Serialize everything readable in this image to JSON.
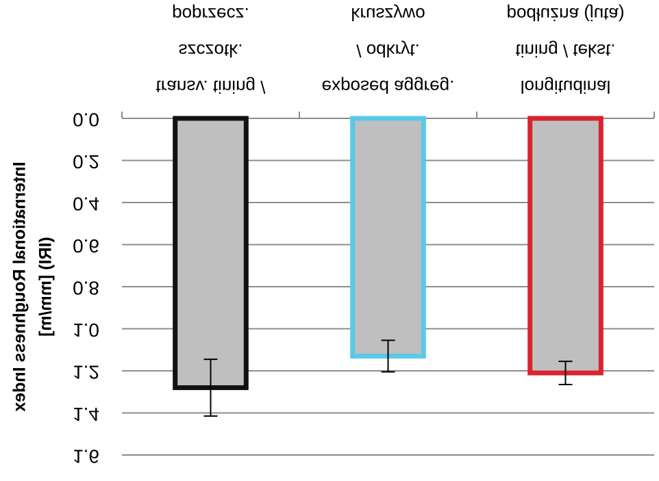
{
  "chart_data": {
    "type": "bar",
    "y_label": [
      "International Roughness Index",
      "(IRI) [mm/m]"
    ],
    "categories": [
      [
        "transv. tining /",
        "szczotk.",
        "poprzecz."
      ],
      [
        "exposed aggreg.",
        "/ odkryt.",
        "kruszywo"
      ],
      [
        "longitudinal",
        "tining / tekst.",
        "podłużna (juta)"
      ]
    ],
    "values": [
      1.28,
      1.13,
      1.21
    ],
    "errors": [
      0.135,
      0.075,
      0.055
    ],
    "fill": "#bfbfbf",
    "colors": [
      "#111111",
      "#5bc8e8",
      "#d9232d"
    ],
    "ylim": [
      0,
      1.6
    ],
    "yticks": [
      {
        "value": 0,
        "label": "0.0"
      },
      {
        "value": 0.2,
        "label": "0.2"
      },
      {
        "value": 0.4,
        "label": "0.4"
      },
      {
        "value": 0.6,
        "label": "0.6"
      },
      {
        "value": 0.8,
        "label": "0.8"
      },
      {
        "value": 1.0,
        "label": "1.0"
      },
      {
        "value": 1.2,
        "label": "1.2"
      },
      {
        "value": 1.4,
        "label": "1.4"
      },
      {
        "value": 1.6,
        "label": "1.6"
      }
    ],
    "grid": true
  }
}
